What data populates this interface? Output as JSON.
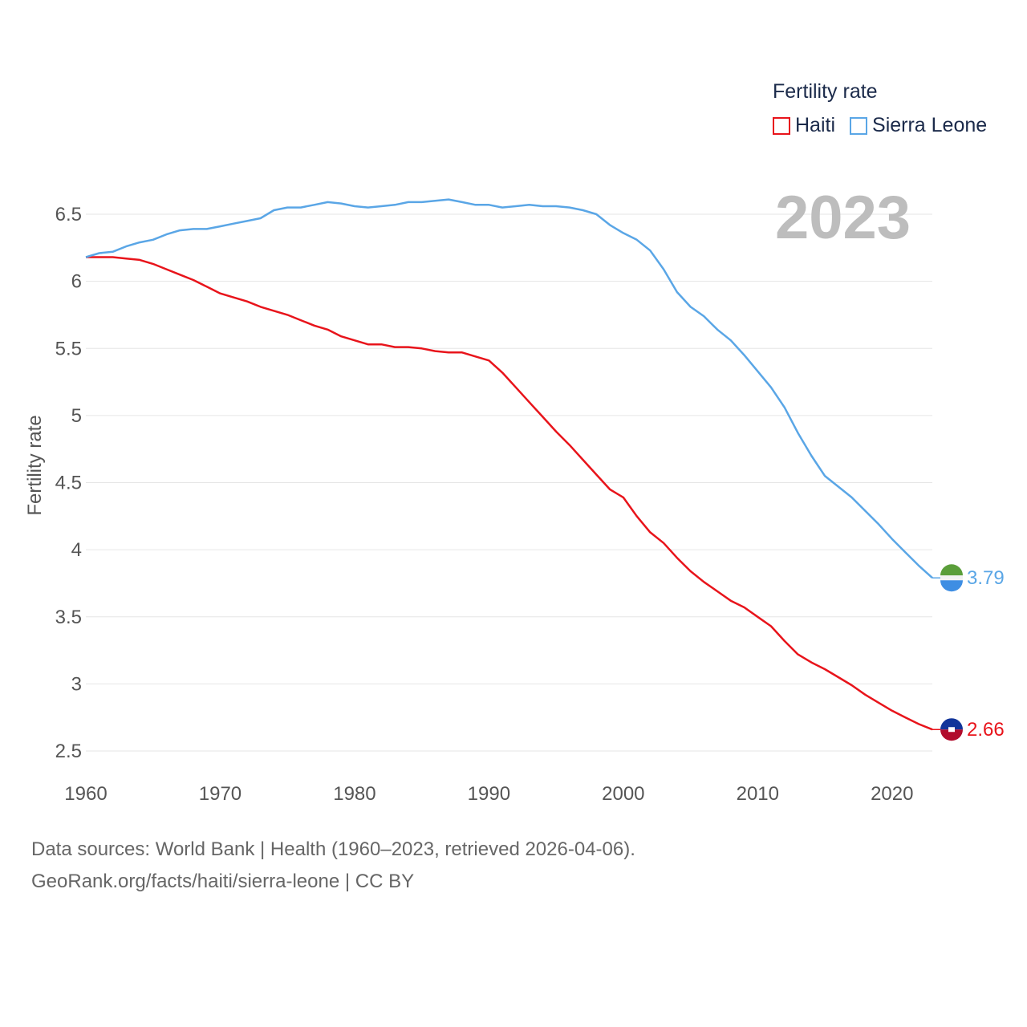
{
  "legend": {
    "title": "Fertility rate",
    "items": [
      {
        "label": "Haiti",
        "color": "#e8141b"
      },
      {
        "label": "Sierra Leone",
        "color": "#5aa6e6"
      }
    ]
  },
  "year_label": "2023",
  "footer": {
    "line1": "Data sources: World Bank | Health (1960–2023, retrieved 2026-04-06).",
    "line2": "GeoRank.org/facts/haiti/sierra-leone | CC BY"
  },
  "chart_data": {
    "type": "line",
    "title": "Fertility rate",
    "xlabel": "",
    "ylabel": "Fertility rate",
    "xlim": [
      1960,
      2023
    ],
    "ylim": [
      2.5,
      6.6
    ],
    "x_ticks": [
      1960,
      1970,
      1980,
      1990,
      2000,
      2010,
      2020
    ],
    "y_ticks": [
      2.5,
      3,
      3.5,
      4,
      4.5,
      5,
      5.5,
      6,
      6.5
    ],
    "y_tick_labels": [
      "2.5",
      "3",
      "3.5",
      "4",
      "4.5",
      "5",
      "5.5",
      "6",
      "6.5"
    ],
    "x": [
      1960,
      1961,
      1962,
      1963,
      1964,
      1965,
      1966,
      1967,
      1968,
      1969,
      1970,
      1971,
      1972,
      1973,
      1974,
      1975,
      1976,
      1977,
      1978,
      1979,
      1980,
      1981,
      1982,
      1983,
      1984,
      1985,
      1986,
      1987,
      1988,
      1989,
      1990,
      1991,
      1992,
      1993,
      1994,
      1995,
      1996,
      1997,
      1998,
      1999,
      2000,
      2001,
      2002,
      2003,
      2004,
      2005,
      2006,
      2007,
      2008,
      2009,
      2010,
      2011,
      2012,
      2013,
      2014,
      2015,
      2016,
      2017,
      2018,
      2019,
      2020,
      2021,
      2022,
      2023
    ],
    "series": [
      {
        "name": "Haiti",
        "color": "#e8141b",
        "end_label": "2.66",
        "values": [
          6.18,
          6.18,
          6.18,
          6.17,
          6.16,
          6.13,
          6.09,
          6.05,
          6.01,
          5.96,
          5.91,
          5.88,
          5.85,
          5.81,
          5.78,
          5.75,
          5.71,
          5.67,
          5.64,
          5.59,
          5.56,
          5.53,
          5.53,
          5.51,
          5.51,
          5.5,
          5.48,
          5.47,
          5.47,
          5.44,
          5.41,
          5.32,
          5.21,
          5.1,
          4.99,
          4.88,
          4.78,
          4.67,
          4.56,
          4.45,
          4.39,
          4.25,
          4.13,
          4.05,
          3.94,
          3.84,
          3.76,
          3.69,
          3.62,
          3.57,
          3.5,
          3.43,
          3.32,
          3.22,
          3.16,
          3.11,
          3.05,
          2.99,
          2.92,
          2.86,
          2.8,
          2.75,
          2.7,
          2.66
        ]
      },
      {
        "name": "Sierra Leone",
        "color": "#5aa6e6",
        "end_label": "3.79",
        "values": [
          6.18,
          6.21,
          6.22,
          6.26,
          6.29,
          6.31,
          6.35,
          6.38,
          6.39,
          6.39,
          6.41,
          6.43,
          6.45,
          6.47,
          6.53,
          6.55,
          6.55,
          6.57,
          6.59,
          6.58,
          6.56,
          6.55,
          6.56,
          6.57,
          6.59,
          6.59,
          6.6,
          6.61,
          6.59,
          6.57,
          6.57,
          6.55,
          6.56,
          6.57,
          6.56,
          6.56,
          6.55,
          6.53,
          6.5,
          6.42,
          6.36,
          6.31,
          6.23,
          6.09,
          5.92,
          5.81,
          5.74,
          5.64,
          5.56,
          5.45,
          5.33,
          5.21,
          5.06,
          4.87,
          4.7,
          4.55,
          4.47,
          4.39,
          4.29,
          4.19,
          4.08,
          3.98,
          3.88,
          3.79
        ]
      }
    ],
    "source": "World Bank | Health"
  }
}
